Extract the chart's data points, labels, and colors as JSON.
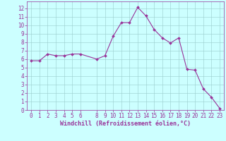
{
  "x": [
    0,
    1,
    2,
    3,
    4,
    5,
    6,
    8,
    9,
    10,
    11,
    12,
    13,
    14,
    15,
    16,
    17,
    18,
    19,
    20,
    21,
    22,
    23
  ],
  "y": [
    5.8,
    5.8,
    6.6,
    6.4,
    6.4,
    6.6,
    6.6,
    6.0,
    6.4,
    8.7,
    10.3,
    10.3,
    12.1,
    11.1,
    9.5,
    8.5,
    7.9,
    8.5,
    4.8,
    4.7,
    2.5,
    1.5,
    0.2
  ],
  "line_color": "#993399",
  "marker_color": "#993399",
  "bg_color": "#ccffff",
  "grid_color": "#99cccc",
  "xlabel": "Windchill (Refroidissement éolien,°C)",
  "xlabel_color": "#993399",
  "tick_color": "#993399",
  "xlim": [
    -0.5,
    23.5
  ],
  "ylim": [
    0,
    12.8
  ],
  "xticks": [
    0,
    1,
    2,
    3,
    4,
    5,
    6,
    8,
    9,
    10,
    11,
    12,
    13,
    14,
    15,
    16,
    17,
    18,
    19,
    20,
    21,
    22,
    23
  ],
  "yticks": [
    0,
    1,
    2,
    3,
    4,
    5,
    6,
    7,
    8,
    9,
    10,
    11,
    12
  ],
  "font_size": 5.5,
  "line_width": 0.8,
  "marker_size": 2.0
}
